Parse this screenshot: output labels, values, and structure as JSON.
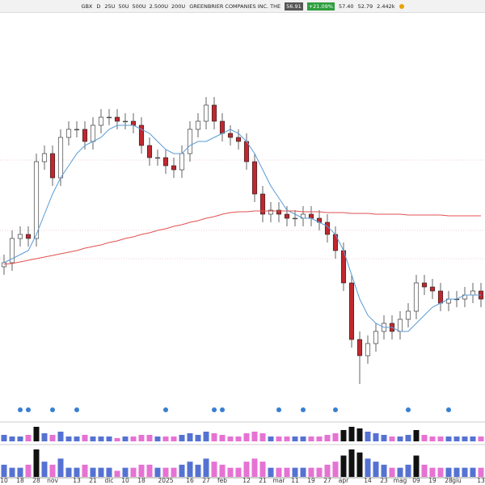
{
  "toolbar": {
    "symbol": "GBX",
    "interval": "D",
    "ranges": [
      "25U",
      "50U",
      "500U",
      "2.500U",
      "200U"
    ],
    "company": "GREENBRIER COMPANIES INC. THE",
    "last": "56.91",
    "change": "+21.09%",
    "high": "57.40",
    "low": "52.79",
    "volume": "2.442k"
  },
  "chart_data": {
    "type": "candlestick",
    "categories": [
      "10",
      null,
      "18",
      null,
      "28",
      null,
      "nov",
      null,
      null,
      "13",
      null,
      "21",
      null,
      "dic",
      null,
      "10",
      null,
      "18",
      null,
      null,
      "2025",
      null,
      null,
      "16",
      null,
      "27",
      null,
      "feb",
      null,
      null,
      "12",
      null,
      "21",
      null,
      "mar",
      null,
      "11",
      null,
      "19",
      null,
      "27",
      null,
      "apr",
      null,
      null,
      "14",
      null,
      "23",
      null,
      "mag",
      null,
      "09",
      null,
      "19",
      null,
      "28",
      "giu",
      null,
      null,
      "13"
    ],
    "open": [
      52,
      52.5,
      55.5,
      56,
      55.5,
      65,
      66,
      63,
      68,
      69,
      69,
      67.5,
      69.5,
      70.5,
      70.5,
      70,
      70,
      69.5,
      67,
      65.5,
      65.5,
      64.5,
      64,
      66,
      69,
      70,
      72,
      70,
      68.5,
      68,
      67.5,
      65,
      61,
      58.5,
      59,
      58.5,
      58,
      58,
      58.5,
      58,
      57.5,
      56,
      54,
      50,
      43,
      41,
      42.5,
      44,
      45,
      44,
      45.5,
      46.5,
      50,
      49.5,
      49,
      47.5,
      48,
      48,
      48.5,
      49
    ],
    "high": [
      53.5,
      56.5,
      57,
      57,
      66,
      67,
      67,
      69,
      70,
      70,
      70,
      70.5,
      71.5,
      71.5,
      71.5,
      71,
      71,
      70.5,
      68,
      66.5,
      66.5,
      65.5,
      67,
      70,
      71,
      73,
      73,
      71,
      69.5,
      69,
      68.5,
      66,
      62,
      60,
      60,
      59.5,
      59,
      59.5,
      59.5,
      59,
      58.5,
      57,
      55,
      51,
      44,
      43.5,
      45,
      46,
      46,
      46.5,
      47.5,
      51,
      51,
      50.5,
      50,
      49,
      49,
      49.5,
      50,
      50
    ],
    "low": [
      51,
      51.5,
      54.5,
      54.5,
      54.5,
      64,
      62,
      62,
      67,
      68,
      66.5,
      66.5,
      68.5,
      69.5,
      69,
      69,
      68.5,
      66,
      64.5,
      64.5,
      63.5,
      63,
      63,
      65,
      68,
      69,
      69,
      67.5,
      67,
      66.5,
      64,
      60,
      57.5,
      57.5,
      57.5,
      57,
      57,
      57,
      57,
      56.5,
      55,
      53,
      49,
      42,
      37.5,
      40,
      41.5,
      43,
      43,
      43,
      44.5,
      45.5,
      48.5,
      48,
      46.5,
      46.5,
      47,
      47,
      47.5,
      47
    ],
    "close": [
      52.5,
      55.5,
      56,
      55.5,
      65,
      66,
      63,
      68,
      69,
      69,
      67.5,
      69.5,
      70.5,
      70.5,
      70,
      70,
      69.5,
      67,
      65.5,
      65.5,
      64.5,
      64,
      66,
      69,
      70,
      72,
      70,
      68.5,
      68,
      67.5,
      65,
      61,
      58.5,
      59,
      58.5,
      58,
      58,
      58.5,
      58,
      57.5,
      56,
      54,
      50,
      43,
      41,
      42.5,
      44,
      45,
      44,
      45.5,
      46.5,
      50,
      49.5,
      49,
      47.5,
      48,
      48,
      48.5,
      49,
      48
    ],
    "volume": [
      4,
      3,
      3,
      4,
      9,
      5,
      4,
      6,
      3,
      3,
      4,
      3,
      3,
      3,
      2,
      3,
      3,
      4,
      4,
      3,
      3,
      3,
      4,
      5,
      4,
      6,
      5,
      4,
      3,
      3,
      5,
      6,
      5,
      3,
      3,
      3,
      3,
      3,
      3,
      3,
      4,
      5,
      7,
      9,
      8,
      6,
      5,
      4,
      3,
      3,
      4,
      7,
      4,
      3,
      3,
      3,
      3,
      3,
      3,
      3
    ],
    "series": [
      {
        "color": "#5b9bd5",
        "values": [
          52.5,
          53,
          53.5,
          54,
          56,
          58.5,
          61,
          63,
          64.5,
          66,
          67,
          67.5,
          68,
          69,
          69.5,
          69.5,
          69.5,
          69,
          68.5,
          67.5,
          66.5,
          66,
          66,
          67,
          67.5,
          67.5,
          68,
          68.5,
          69,
          68.5,
          67.5,
          66,
          64,
          62,
          60.5,
          59,
          58.5,
          58,
          58,
          57.5,
          57,
          56,
          54,
          51,
          48,
          46,
          45,
          44.5,
          44.5,
          44,
          44,
          45,
          46,
          47,
          47.5,
          48,
          48,
          48.5,
          48.5,
          48.5
        ]
      },
      {
        "color": "#e05050",
        "values": [
          52.3,
          52.4,
          52.6,
          52.8,
          53,
          53.2,
          53.4,
          53.6,
          53.8,
          54,
          54.3,
          54.5,
          54.7,
          55,
          55.2,
          55.5,
          55.7,
          56,
          56.2,
          56.5,
          56.7,
          57,
          57.2,
          57.5,
          57.7,
          58,
          58.2,
          58.5,
          58.7,
          58.8,
          58.8,
          58.9,
          58.9,
          58.9,
          58.9,
          58.9,
          58.9,
          58.8,
          58.8,
          58.8,
          58.7,
          58.7,
          58.7,
          58.6,
          58.6,
          58.6,
          58.5,
          58.5,
          58.5,
          58.5,
          58.4,
          58.4,
          58.4,
          58.4,
          58.4,
          58.3,
          58.3,
          58.3,
          58.3,
          58.3
        ]
      }
    ],
    "levels": [
      65.2,
      56.5,
      53
    ],
    "ylim": [
      35,
      85
    ],
    "up_color": "#ffffff",
    "down_color": "#c0282e",
    "volume_up_color": "#2a4fc8",
    "volume_down_color": "#e04fc8"
  }
}
